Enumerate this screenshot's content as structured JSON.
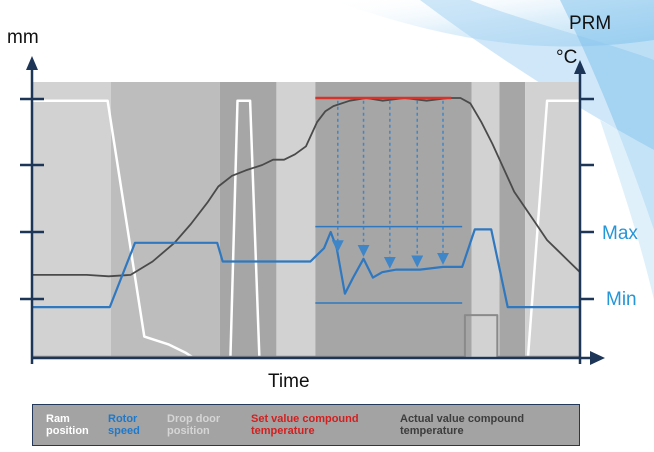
{
  "colors": {
    "background_light": "#d2d2d2",
    "background_dark": "#a6a6a6",
    "background_mid": "#bdbdbd",
    "ram_position": "#ffffff",
    "rotor_speed": "#2f78c0",
    "drop_door_position": "#8a8a8a",
    "set_value_temperature": "#d8332a",
    "actual_value_temperature": "#4a4a4a",
    "axis": "#1d3557",
    "right_axis_labels": "#2596d8"
  },
  "chart_data": {
    "type": "line",
    "x_label": "Time",
    "left_axis_label": "mm",
    "right_axis_labels": [
      "PRM",
      "°C"
    ],
    "right_axis_markers": [
      "Max",
      "Min"
    ],
    "x": [
      0,
      20,
      40,
      60,
      80,
      100
    ],
    "phase_bands": [
      {
        "from": 0,
        "to": 14.4,
        "shade": "light"
      },
      {
        "from": 14.4,
        "to": 34.3,
        "shade": "mid"
      },
      {
        "from": 34.3,
        "to": 44.6,
        "shade": "dark"
      },
      {
        "from": 44.6,
        "to": 51.7,
        "shade": "light"
      },
      {
        "from": 51.7,
        "to": 80.2,
        "shade": "dark"
      },
      {
        "from": 80.2,
        "to": 85.3,
        "shade": "light"
      },
      {
        "from": 85.3,
        "to": 90.0,
        "shade": "dark"
      },
      {
        "from": 90.0,
        "to": 100,
        "shade": "light"
      }
    ],
    "series": [
      {
        "name": "Ram position",
        "points": [
          [
            0,
            96
          ],
          [
            13.8,
            96
          ],
          [
            20.5,
            8
          ],
          [
            25,
            5
          ],
          [
            28,
            2
          ],
          [
            29.5,
            0
          ],
          [
            36.2,
            0
          ],
          [
            37.5,
            96
          ],
          [
            39.8,
            96
          ],
          [
            41.5,
            0
          ],
          [
            90.5,
            0
          ],
          [
            94,
            96
          ],
          [
            100,
            96
          ]
        ]
      },
      {
        "name": "Rotor speed",
        "points": [
          [
            0,
            19
          ],
          [
            14.2,
            19
          ],
          [
            18.8,
            43
          ],
          [
            33.8,
            43
          ],
          [
            34.8,
            36
          ],
          [
            50.8,
            36
          ],
          [
            53.3,
            41
          ],
          [
            54.5,
            47
          ],
          [
            55.6,
            41
          ],
          [
            57.1,
            24
          ],
          [
            58.6,
            30
          ],
          [
            60.5,
            37
          ],
          [
            62.2,
            30
          ],
          [
            63.9,
            32
          ],
          [
            66.5,
            33
          ],
          [
            70.8,
            33
          ],
          [
            75,
            34
          ],
          [
            78.5,
            34
          ],
          [
            80.8,
            48
          ],
          [
            83.8,
            48
          ],
          [
            86.8,
            19
          ],
          [
            100,
            19
          ]
        ]
      },
      {
        "name": "Drop door position",
        "points": [
          [
            0,
            0.5
          ],
          [
            79,
            0.5
          ],
          [
            79,
            16
          ],
          [
            84.9,
            16
          ],
          [
            84.9,
            0.5
          ],
          [
            100,
            0.5
          ]
        ]
      },
      {
        "name": "Set value compound temperature",
        "points": [
          [
            51.7,
            97
          ],
          [
            76.5,
            97
          ]
        ]
      },
      {
        "name": "Actual value compound temperature",
        "points": [
          [
            0,
            31
          ],
          [
            10,
            31
          ],
          [
            14,
            30.5
          ],
          [
            18,
            31
          ],
          [
            22,
            36
          ],
          [
            26,
            43
          ],
          [
            29,
            50
          ],
          [
            32,
            58
          ],
          [
            34,
            64
          ],
          [
            36.5,
            68
          ],
          [
            39,
            70
          ],
          [
            42,
            72
          ],
          [
            44,
            74
          ],
          [
            46,
            74
          ],
          [
            48,
            76
          ],
          [
            50,
            79
          ],
          [
            52,
            88
          ],
          [
            53.5,
            92
          ],
          [
            55,
            94
          ],
          [
            58,
            96
          ],
          [
            61,
            97
          ],
          [
            64,
            96
          ],
          [
            68,
            97
          ],
          [
            72,
            96
          ],
          [
            76,
            97
          ],
          [
            78.2,
            97
          ],
          [
            80,
            95
          ],
          [
            82,
            88
          ],
          [
            84,
            80
          ],
          [
            86,
            71
          ],
          [
            88,
            62
          ],
          [
            90,
            56
          ],
          [
            92,
            50
          ],
          [
            94,
            44
          ],
          [
            96,
            40
          ],
          [
            98,
            36
          ],
          [
            100,
            32
          ]
        ]
      }
    ],
    "annotations": {
      "max_level": 49,
      "min_level": 20.5,
      "drop_arrows_x": [
        55.8,
        60.5,
        65.3,
        70.3,
        75
      ]
    },
    "legend": {
      "placement": "bottom",
      "entries": [
        {
          "label": "Ram position"
        },
        {
          "label": "Rotor speed"
        },
        {
          "label": "Drop door position"
        },
        {
          "label": "Set value compound temperature"
        },
        {
          "label": "Actual value compound temperature"
        }
      ]
    },
    "grid": false
  }
}
